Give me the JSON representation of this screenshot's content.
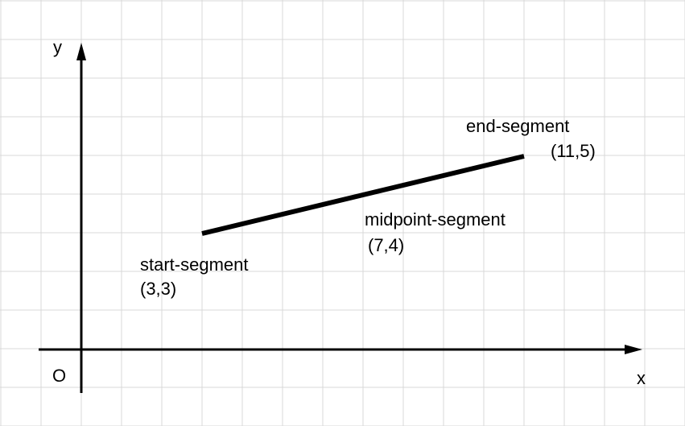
{
  "axes": {
    "x_label": "x",
    "y_label": "y",
    "origin_label": "O"
  },
  "segment": {
    "start": {
      "name": "start-segment",
      "coords": "(3,3)",
      "x": 3,
      "y": 3
    },
    "midpoint": {
      "name": "midpoint-segment",
      "coords": "(7,4)",
      "x": 7,
      "y": 4
    },
    "end": {
      "name": "end-segment",
      "coords": "(11,5)",
      "x": 11,
      "y": 5
    }
  },
  "colors": {
    "grid": "#d9d9d9",
    "axis": "#000000",
    "segment": "#000000"
  }
}
